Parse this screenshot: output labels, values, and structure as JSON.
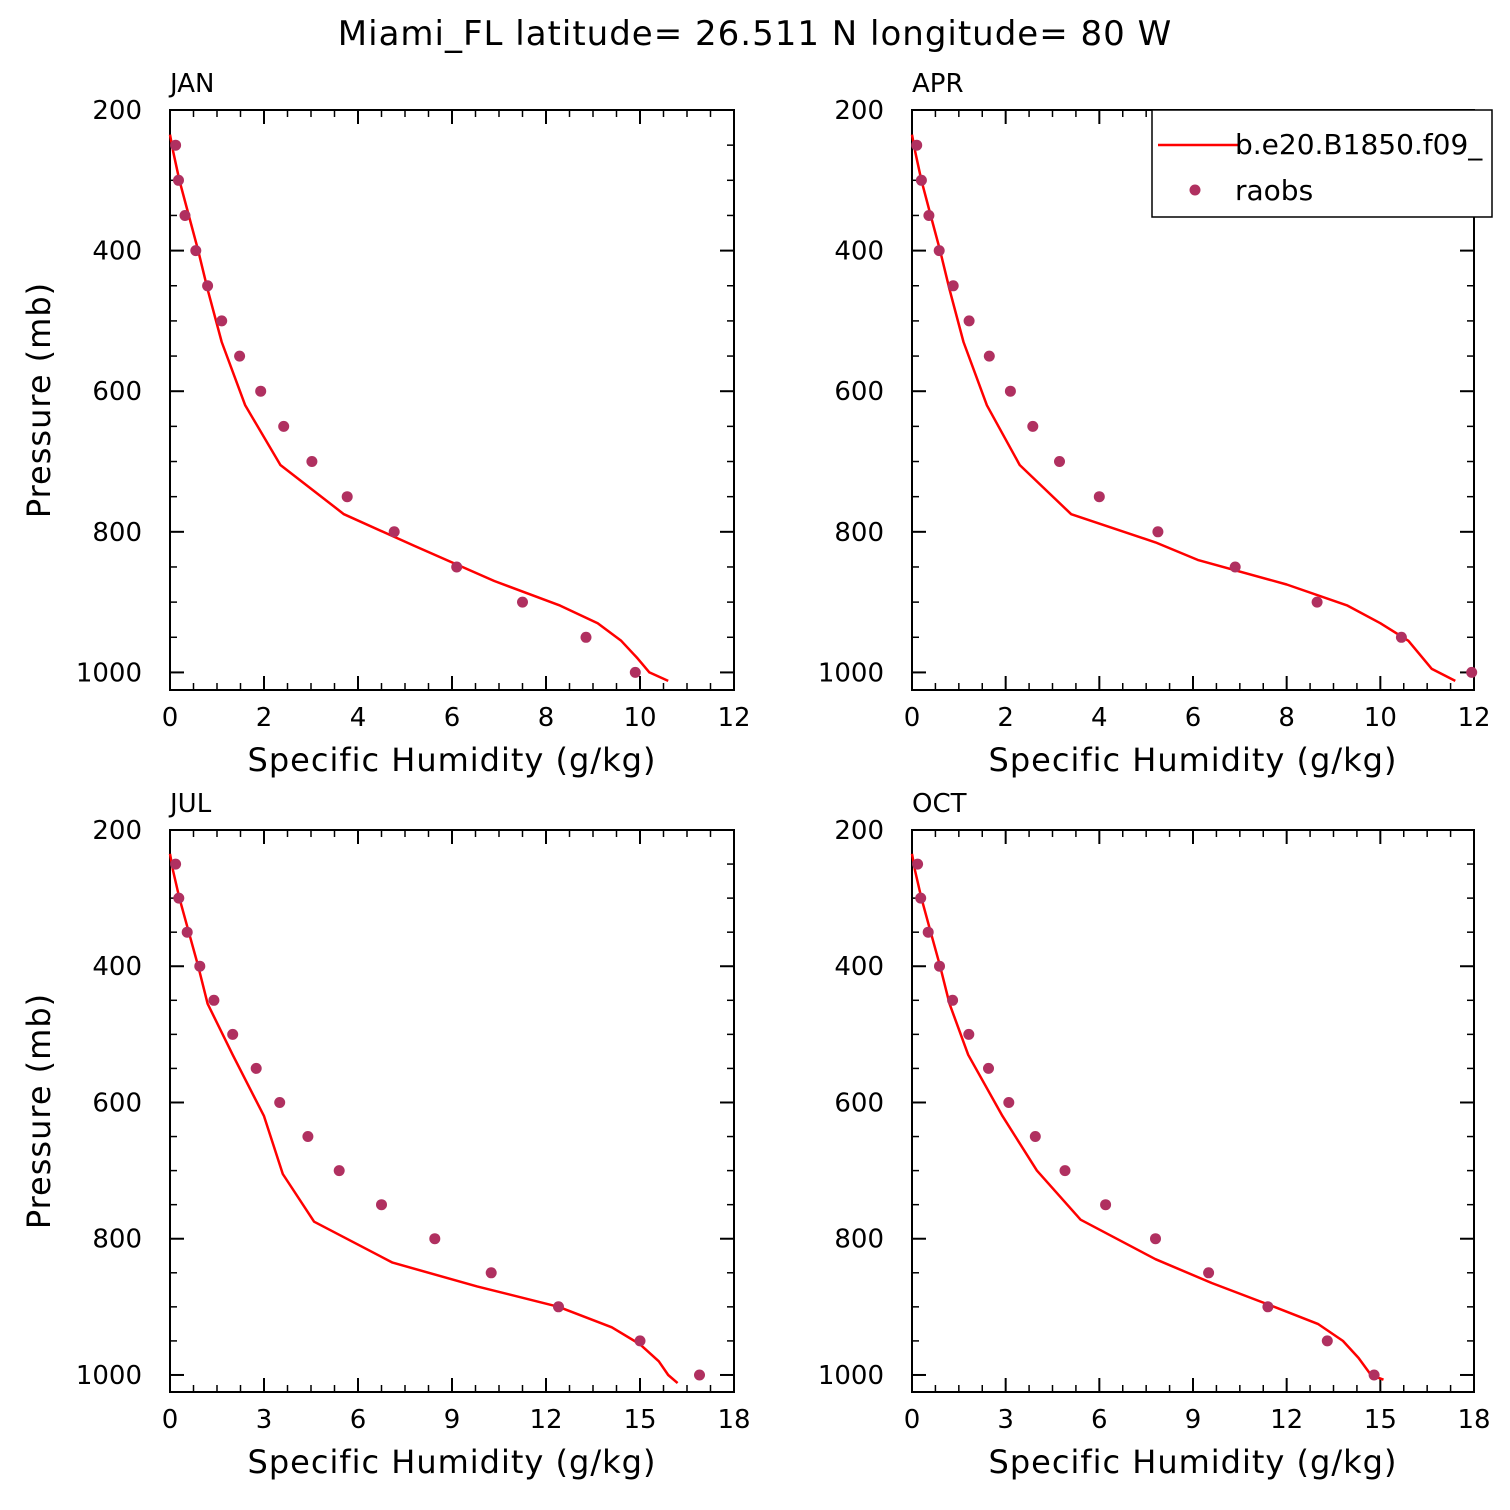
{
  "title": "Miami_FL  latitude= 26.511 N longitude= 80 W",
  "legend": {
    "placement": "top-right of APR panel",
    "model_label": "b.e20.B1850.f09_",
    "obs_label": "raobs",
    "model_color": "#ff0000",
    "obs_color": "#b03060"
  },
  "chart_data": [
    {
      "type": "line",
      "panel": "JAN",
      "xlabel": "Specific Humidity (g/kg)",
      "ylabel": "Pressure (mb)",
      "xlim": [
        0,
        12
      ],
      "ylim": [
        1025,
        200
      ],
      "xticks": [
        "0",
        "2",
        "4",
        "6",
        "8",
        "10",
        "12"
      ],
      "yticks": [
        "200",
        "400",
        "600",
        "800",
        "1000"
      ],
      "series": [
        {
          "name": "b.e20.B1850.f09_",
          "x": [
            0.0,
            0.07,
            0.2,
            0.4,
            0.6,
            0.8,
            1.1,
            1.6,
            2.35,
            3.7,
            5.2,
            6.9,
            8.3,
            9.1,
            9.6,
            9.95,
            10.2,
            10.6
          ],
          "y": [
            235,
            260,
            300,
            350,
            400,
            455,
            530,
            620,
            705,
            775,
            820,
            870,
            905,
            930,
            955,
            980,
            1000,
            1012
          ]
        },
        {
          "name": "raobs",
          "x": [
            0.12,
            0.18,
            0.32,
            0.55,
            0.8,
            1.1,
            1.48,
            1.93,
            2.42,
            3.02,
            3.77,
            4.77,
            6.1,
            7.5,
            8.85,
            9.9
          ],
          "y": [
            250,
            300,
            350,
            400,
            450,
            500,
            550,
            600,
            650,
            700,
            750,
            800,
            850,
            900,
            950,
            1000
          ]
        }
      ]
    },
    {
      "type": "line",
      "panel": "APR",
      "xlabel": "Specific Humidity (g/kg)",
      "ylabel": "",
      "xlim": [
        0,
        12
      ],
      "ylim": [
        1025,
        200
      ],
      "xticks": [
        "0",
        "2",
        "4",
        "6",
        "8",
        "10",
        "12"
      ],
      "yticks": [
        "200",
        "400",
        "600",
        "800",
        "1000"
      ],
      "series": [
        {
          "name": "b.e20.B1850.f09_",
          "x": [
            0.0,
            0.07,
            0.2,
            0.4,
            0.6,
            0.8,
            1.1,
            1.6,
            2.3,
            3.4,
            5.2,
            6.1,
            8.0,
            9.3,
            10.0,
            10.6,
            11.1,
            11.6
          ],
          "y": [
            235,
            260,
            300,
            350,
            400,
            455,
            530,
            620,
            705,
            775,
            815,
            840,
            875,
            905,
            930,
            955,
            995,
            1012
          ]
        },
        {
          "name": "raobs",
          "x": [
            0.1,
            0.2,
            0.36,
            0.58,
            0.88,
            1.22,
            1.65,
            2.1,
            2.58,
            3.15,
            4.0,
            5.25,
            6.9,
            8.65,
            10.45,
            11.95
          ],
          "y": [
            250,
            300,
            350,
            400,
            450,
            500,
            550,
            600,
            650,
            700,
            750,
            800,
            850,
            900,
            950,
            1000
          ]
        }
      ]
    },
    {
      "type": "line",
      "panel": "JUL",
      "xlabel": "Specific Humidity (g/kg)",
      "ylabel": "Pressure (mb)",
      "xlim": [
        0,
        18
      ],
      "ylim": [
        1025,
        200
      ],
      "xticks": [
        "0",
        "3",
        "6",
        "9",
        "12",
        "15",
        "18"
      ],
      "yticks": [
        "200",
        "400",
        "600",
        "800",
        "1000"
      ],
      "series": [
        {
          "name": "b.e20.B1850.f09_",
          "x": [
            0.0,
            0.1,
            0.3,
            0.6,
            0.9,
            1.2,
            2.0,
            3.0,
            3.6,
            4.6,
            7.1,
            9.8,
            12.4,
            14.1,
            15.0,
            15.6,
            15.9,
            16.2
          ],
          "y": [
            235,
            260,
            300,
            350,
            400,
            455,
            530,
            620,
            705,
            775,
            835,
            870,
            900,
            930,
            955,
            980,
            1000,
            1012
          ]
        },
        {
          "name": "raobs",
          "x": [
            0.18,
            0.28,
            0.55,
            0.95,
            1.4,
            2.0,
            2.75,
            3.5,
            4.4,
            5.4,
            6.75,
            8.45,
            10.25,
            12.4,
            15.0,
            16.9
          ],
          "y": [
            250,
            300,
            350,
            400,
            450,
            500,
            550,
            600,
            650,
            700,
            750,
            800,
            850,
            900,
            950,
            1000
          ]
        }
      ]
    },
    {
      "type": "line",
      "panel": "OCT",
      "xlabel": "Specific Humidity (g/kg)",
      "ylabel": "",
      "xlim": [
        0,
        18
      ],
      "ylim": [
        1025,
        200
      ],
      "xticks": [
        "0",
        "3",
        "6",
        "9",
        "12",
        "15",
        "18"
      ],
      "yticks": [
        "200",
        "400",
        "600",
        "800",
        "1000"
      ],
      "series": [
        {
          "name": "b.e20.B1850.f09_",
          "x": [
            0.0,
            0.1,
            0.3,
            0.6,
            0.9,
            1.2,
            1.8,
            2.9,
            4.0,
            5.4,
            7.8,
            9.6,
            11.6,
            13.0,
            13.8,
            14.3,
            14.7,
            15.1
          ],
          "y": [
            235,
            260,
            300,
            350,
            400,
            455,
            530,
            620,
            700,
            772,
            830,
            865,
            900,
            925,
            950,
            975,
            1000,
            1007
          ]
        },
        {
          "name": "raobs",
          "x": [
            0.18,
            0.28,
            0.52,
            0.88,
            1.3,
            1.82,
            2.45,
            3.1,
            3.95,
            4.9,
            6.2,
            7.8,
            9.5,
            11.4,
            13.3,
            14.8
          ],
          "y": [
            250,
            300,
            350,
            400,
            450,
            500,
            550,
            600,
            650,
            700,
            750,
            800,
            850,
            900,
            950,
            1000
          ]
        }
      ]
    }
  ]
}
